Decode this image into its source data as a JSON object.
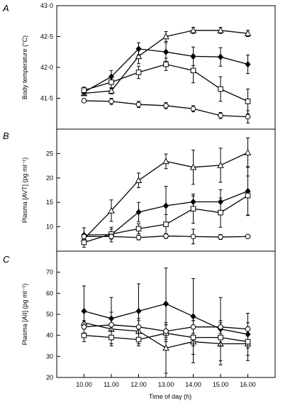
{
  "chart_data": [
    {
      "panel": "A",
      "type": "line",
      "ylabel": "Body temperature (°C)",
      "xlabel": "",
      "ylim": [
        41.0,
        43.0
      ],
      "yticks": [
        41.5,
        42.0,
        42.5,
        43.0
      ],
      "ytick_labels": [
        "41·5",
        "42·0",
        "42·5",
        "43·0"
      ],
      "x": [
        10,
        11,
        12,
        13,
        14,
        15,
        16
      ],
      "series": [
        {
          "marker": "triangle-open",
          "values": [
            41.58,
            41.62,
            42.18,
            42.5,
            42.6,
            42.6,
            42.55
          ],
          "errors": [
            0,
            0.05,
            0.12,
            0.08,
            0.05,
            0.05,
            0.05
          ]
        },
        {
          "marker": "diamond-filled",
          "values": [
            41.6,
            41.85,
            42.3,
            42.25,
            42.18,
            42.17,
            42.05
          ],
          "errors": [
            0.05,
            0.1,
            0.1,
            0.15,
            0.15,
            0.15,
            0.15
          ]
        },
        {
          "marker": "square-open",
          "values": [
            41.63,
            41.76,
            41.92,
            42.05,
            41.95,
            41.65,
            41.45
          ],
          "errors": [
            0.05,
            0.1,
            0.1,
            0.1,
            0.2,
            0.2,
            0.2
          ]
        },
        {
          "marker": "circle-open",
          "values": [
            41.46,
            41.45,
            41.4,
            41.38,
            41.33,
            41.22,
            41.2
          ],
          "errors": [
            0,
            0.05,
            0.05,
            0.05,
            0.05,
            0.05,
            0.1
          ]
        }
      ]
    },
    {
      "panel": "B",
      "type": "line",
      "ylabel": "Plasma [AVT] (pg ml⁻¹)",
      "xlabel": "",
      "ylim": [
        5,
        30
      ],
      "yticks": [
        10,
        15,
        20,
        25
      ],
      "ytick_labels": [
        "10",
        "15",
        "20",
        "25"
      ],
      "x": [
        10,
        11,
        12,
        13,
        14,
        15,
        16
      ],
      "series": [
        {
          "marker": "triangle-open",
          "values": [
            7.5,
            13.3,
            19.5,
            23.4,
            22.2,
            22.6,
            25.2
          ],
          "errors": [
            0.8,
            2.2,
            1.5,
            1.5,
            3.5,
            3.5,
            3
          ]
        },
        {
          "marker": "diamond-filled",
          "values": [
            8.3,
            8.4,
            13.0,
            14.3,
            15.1,
            15.1,
            17.3
          ],
          "errors": [
            1.5,
            1.5,
            2,
            4,
            1.2,
            2.5,
            5
          ]
        },
        {
          "marker": "square-open",
          "values": [
            6.8,
            8.5,
            9.6,
            10.5,
            13.7,
            12.9,
            16.4
          ],
          "errors": [
            1,
            1,
            1,
            2,
            3,
            3,
            4
          ]
        },
        {
          "marker": "circle-open",
          "values": [
            8.0,
            8.0,
            7.8,
            8.1,
            8.0,
            7.9,
            8.0
          ],
          "errors": [
            0.5,
            0.5,
            0.5,
            0.5,
            1.5,
            0.5,
            0.3
          ]
        }
      ]
    },
    {
      "panel": "C",
      "type": "line",
      "ylabel": "Plasma [AII] (pg ml⁻¹)",
      "xlabel": "Time of day (h)",
      "ylim": [
        20,
        80
      ],
      "yticks": [
        20,
        30,
        40,
        50,
        60,
        70
      ],
      "ytick_labels": [
        "20",
        "30",
        "40",
        "50",
        "60",
        "70"
      ],
      "x": [
        10,
        11,
        12,
        13,
        14,
        15,
        16
      ],
      "xticks": [
        10,
        11,
        12,
        13,
        14,
        15,
        16
      ],
      "xtick_labels": [
        "10.00",
        "11.00",
        "12.00",
        "13.00",
        "14.00",
        "15.00",
        "16.00"
      ],
      "series": [
        {
          "marker": "triangle-open",
          "values": [
            46,
            43,
            42,
            34,
            37,
            36,
            36
          ],
          "errors": [
            6,
            8,
            6,
            12,
            10,
            10,
            8
          ]
        },
        {
          "marker": "diamond-filled",
          "values": [
            51.5,
            48,
            51.5,
            55,
            49,
            43,
            40.5
          ],
          "errors": [
            12,
            10,
            13,
            17,
            18,
            15,
            10
          ]
        },
        {
          "marker": "square-open",
          "values": [
            40,
            39,
            38,
            41,
            39,
            39,
            37
          ],
          "errors": [
            3,
            3,
            3,
            4,
            4,
            4,
            3
          ]
        },
        {
          "marker": "circle-open",
          "values": [
            44,
            45,
            44,
            42,
            44,
            44,
            43
          ],
          "errors": [
            3,
            3,
            3,
            3,
            3,
            3,
            3
          ]
        }
      ]
    }
  ]
}
